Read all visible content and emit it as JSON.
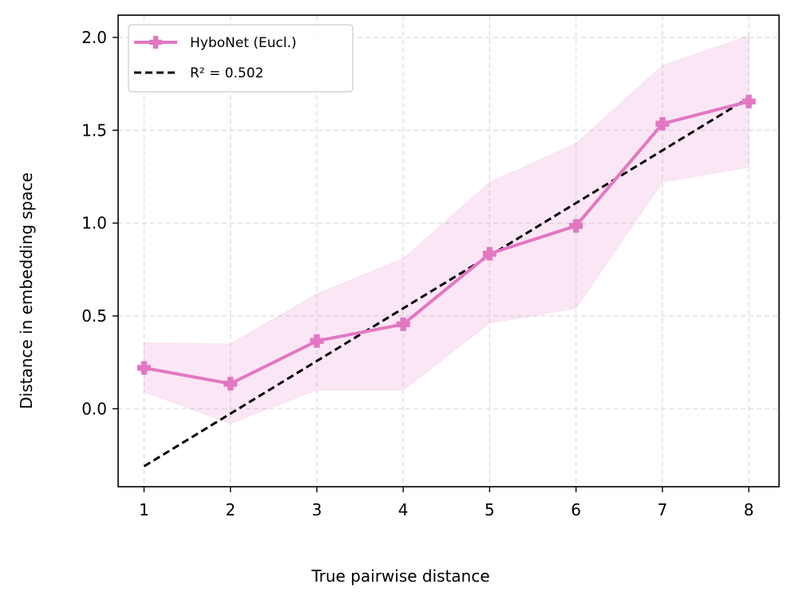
{
  "chart_data": {
    "type": "line",
    "xlabel": "True pairwise distance",
    "ylabel": "Distance in embedding space",
    "x": [
      1,
      2,
      3,
      4,
      5,
      6,
      7,
      8
    ],
    "xlim": [
      0.7,
      8.35
    ],
    "ylim": [
      -0.42,
      2.12
    ],
    "xticks": [
      "1",
      "2",
      "3",
      "4",
      "5",
      "6",
      "7",
      "8"
    ],
    "yticks": [
      "0.0",
      "0.5",
      "1.0",
      "1.5",
      "2.0"
    ],
    "grid": true,
    "legend_position": "top-left",
    "series": [
      {
        "name": "HyboNet (Eucl.)",
        "style": "solid line with plus-square markers",
        "color": "#e377c2",
        "values": [
          0.22,
          0.135,
          0.365,
          0.455,
          0.835,
          0.985,
          1.535,
          1.655
        ],
        "band_lower": [
          0.09,
          -0.08,
          0.1,
          0.1,
          0.46,
          0.54,
          1.22,
          1.3
        ],
        "band_upper": [
          0.355,
          0.35,
          0.62,
          0.81,
          1.22,
          1.43,
          1.85,
          2.01
        ]
      },
      {
        "name": "R² = 0.502",
        "style": "dashed",
        "color": "#000000",
        "x": [
          1,
          8
        ],
        "values": [
          -0.31,
          1.675
        ]
      }
    ]
  }
}
